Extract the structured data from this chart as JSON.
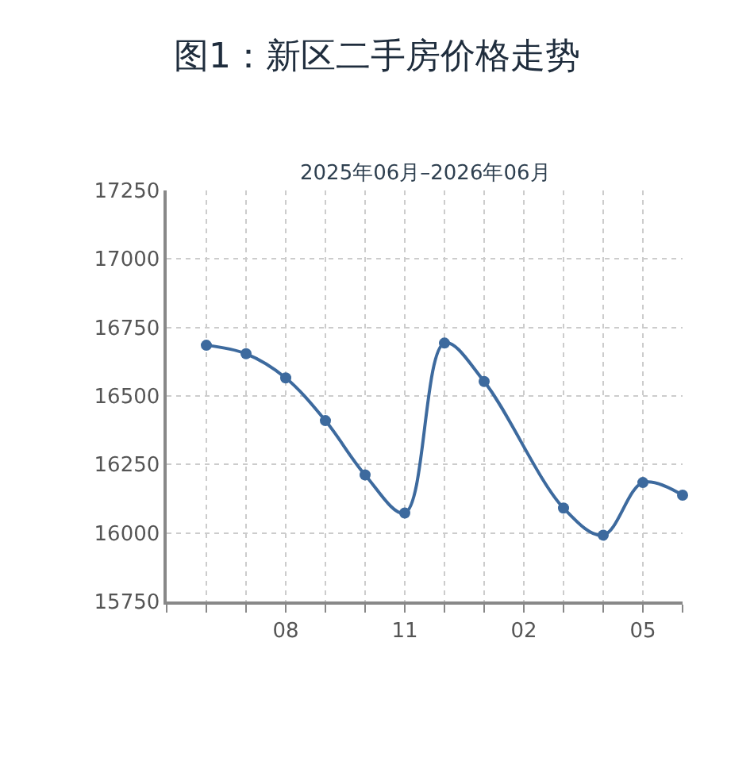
{
  "chart_data": {
    "type": "line",
    "title": "图1：新区二手房价格走势",
    "subtitle": "2025年06月–2026年06月",
    "categories": [
      null,
      null,
      "08",
      null,
      null,
      "11",
      null,
      null,
      "02",
      null,
      null,
      "05",
      null
    ],
    "series": [
      {
        "color": "#3d6a9e",
        "values": [
          16685,
          16654,
          16566,
          16410,
          16212,
          16073,
          16693,
          16553,
          null,
          16091,
          15992,
          16184,
          16138
        ]
      }
    ],
    "ylim": [
      15750,
      17250
    ],
    "yticks": [
      15750,
      16000,
      16250,
      16500,
      16750,
      17000,
      17250
    ],
    "grid": true,
    "marker": "circle",
    "line_style": "solid"
  }
}
